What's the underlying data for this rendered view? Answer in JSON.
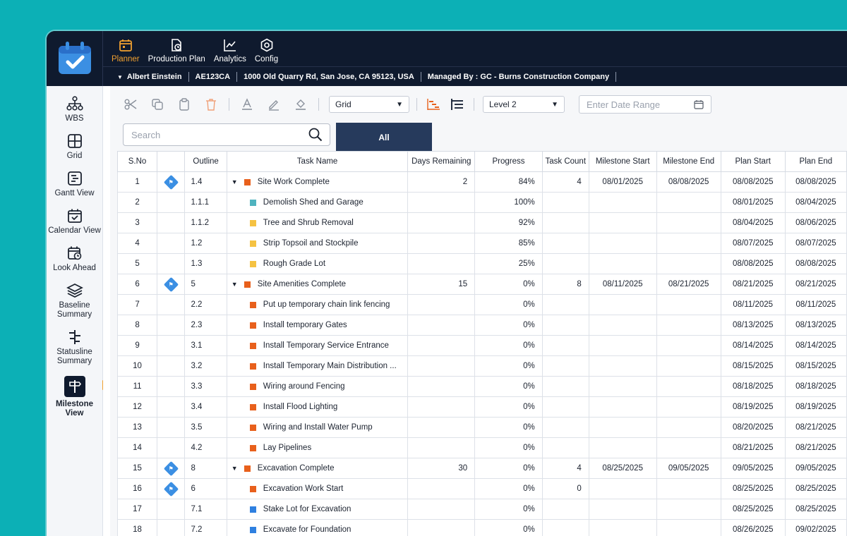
{
  "nav": [
    {
      "label": "Planner",
      "icon": "planner-icon",
      "active": true
    },
    {
      "label": "Production Plan",
      "icon": "production-plan-icon",
      "active": false
    },
    {
      "label": "Analytics",
      "icon": "analytics-icon",
      "active": false
    },
    {
      "label": "Config",
      "icon": "config-icon",
      "active": false
    }
  ],
  "info": {
    "user": "Albert Einstein",
    "project_code": "AE123CA",
    "address": "1000 Old Quarry Rd, San Jose, CA 95123, USA",
    "managed_by": "Managed By : GC - Burns Construction Company"
  },
  "sidebar": [
    {
      "label": "WBS",
      "icon": "wbs-icon"
    },
    {
      "label": "Grid",
      "icon": "grid-icon"
    },
    {
      "label": "Gantt View",
      "icon": "gantt-icon"
    },
    {
      "label": "Calendar View",
      "icon": "calendar-icon"
    },
    {
      "label": "Look Ahead",
      "icon": "look-ahead-icon"
    },
    {
      "label": "Baseline Summary",
      "icon": "baseline-icon"
    },
    {
      "label": "Statusline Summary",
      "icon": "statusline-icon"
    },
    {
      "label": "Milestone View",
      "icon": "milestone-icon",
      "active": true
    }
  ],
  "toolbar": {
    "view_select": "Grid",
    "level_select": "Level 2",
    "date_range_placeholder": "Enter Date Range"
  },
  "search": {
    "placeholder": "Search"
  },
  "tabs": {
    "all_label": "All"
  },
  "colors": {
    "accent": "#f0a030",
    "navy": "#0f1a2e",
    "tab": "#263a5c",
    "orange": "#e8601c",
    "yellow": "#f5c242",
    "teal": "#4fb3bf",
    "blue": "#2f80e0"
  },
  "table": {
    "columns": [
      "S.No",
      "",
      "Outline",
      "Task Name",
      "Days Remaining",
      "Progress",
      "Task Count",
      "Milestone Start",
      "Milestone End",
      "Plan Start",
      "Plan End"
    ],
    "rows": [
      {
        "sno": "1",
        "milestone": true,
        "outline": "1.4",
        "name": "Site Work Complete",
        "parent": true,
        "color": "#e8601c",
        "days": "2",
        "progress": "84%",
        "count": "4",
        "ms_start": "08/01/2025",
        "ms_end": "08/08/2025",
        "plan_start": "08/08/2025",
        "plan_end": "08/08/2025"
      },
      {
        "sno": "2",
        "milestone": false,
        "outline": "1.1.1",
        "name": "Demolish Shed and Garage",
        "parent": false,
        "color": "#4fb3bf",
        "days": "",
        "progress": "100%",
        "count": "",
        "ms_start": "",
        "ms_end": "",
        "plan_start": "08/01/2025",
        "plan_end": "08/04/2025"
      },
      {
        "sno": "3",
        "milestone": false,
        "outline": "1.1.2",
        "name": "Tree and Shrub Removal",
        "parent": false,
        "color": "#f5c242",
        "days": "",
        "progress": "92%",
        "count": "",
        "ms_start": "",
        "ms_end": "",
        "plan_start": "08/04/2025",
        "plan_end": "08/06/2025"
      },
      {
        "sno": "4",
        "milestone": false,
        "outline": "1.2",
        "name": "Strip Topsoil and Stockpile",
        "parent": false,
        "color": "#f5c242",
        "days": "",
        "progress": "85%",
        "count": "",
        "ms_start": "",
        "ms_end": "",
        "plan_start": "08/07/2025",
        "plan_end": "08/07/2025"
      },
      {
        "sno": "5",
        "milestone": false,
        "outline": "1.3",
        "name": "Rough Grade Lot",
        "parent": false,
        "color": "#f5c242",
        "days": "",
        "progress": "25%",
        "count": "",
        "ms_start": "",
        "ms_end": "",
        "plan_start": "08/08/2025",
        "plan_end": "08/08/2025"
      },
      {
        "sno": "6",
        "milestone": true,
        "outline": "5",
        "name": "Site Amenities Complete",
        "parent": true,
        "color": "#e8601c",
        "days": "15",
        "progress": "0%",
        "count": "8",
        "ms_start": "08/11/2025",
        "ms_end": "08/21/2025",
        "plan_start": "08/21/2025",
        "plan_end": "08/21/2025"
      },
      {
        "sno": "7",
        "milestone": false,
        "outline": "2.2",
        "name": "Put up temporary chain link fencing",
        "parent": false,
        "color": "#e8601c",
        "days": "",
        "progress": "0%",
        "count": "",
        "ms_start": "",
        "ms_end": "",
        "plan_start": "08/11/2025",
        "plan_end": "08/11/2025"
      },
      {
        "sno": "8",
        "milestone": false,
        "outline": "2.3",
        "name": "Install temporary Gates",
        "parent": false,
        "color": "#e8601c",
        "days": "",
        "progress": "0%",
        "count": "",
        "ms_start": "",
        "ms_end": "",
        "plan_start": "08/13/2025",
        "plan_end": "08/13/2025"
      },
      {
        "sno": "9",
        "milestone": false,
        "outline": "3.1",
        "name": "Install Temporary Service Entrance",
        "parent": false,
        "color": "#e8601c",
        "days": "",
        "progress": "0%",
        "count": "",
        "ms_start": "",
        "ms_end": "",
        "plan_start": "08/14/2025",
        "plan_end": "08/14/2025"
      },
      {
        "sno": "10",
        "milestone": false,
        "outline": "3.2",
        "name": "Install Temporary Main Distribution ...",
        "parent": false,
        "color": "#e8601c",
        "days": "",
        "progress": "0%",
        "count": "",
        "ms_start": "",
        "ms_end": "",
        "plan_start": "08/15/2025",
        "plan_end": "08/15/2025"
      },
      {
        "sno": "11",
        "milestone": false,
        "outline": "3.3",
        "name": "Wiring around Fencing",
        "parent": false,
        "color": "#e8601c",
        "days": "",
        "progress": "0%",
        "count": "",
        "ms_start": "",
        "ms_end": "",
        "plan_start": "08/18/2025",
        "plan_end": "08/18/2025"
      },
      {
        "sno": "12",
        "milestone": false,
        "outline": "3.4",
        "name": "Install Flood Lighting",
        "parent": false,
        "color": "#e8601c",
        "days": "",
        "progress": "0%",
        "count": "",
        "ms_start": "",
        "ms_end": "",
        "plan_start": "08/19/2025",
        "plan_end": "08/19/2025"
      },
      {
        "sno": "13",
        "milestone": false,
        "outline": "3.5",
        "name": "Wiring and Install Water Pump",
        "parent": false,
        "color": "#e8601c",
        "days": "",
        "progress": "0%",
        "count": "",
        "ms_start": "",
        "ms_end": "",
        "plan_start": "08/20/2025",
        "plan_end": "08/21/2025"
      },
      {
        "sno": "14",
        "milestone": false,
        "outline": "4.2",
        "name": "Lay Pipelines",
        "parent": false,
        "color": "#e8601c",
        "days": "",
        "progress": "0%",
        "count": "",
        "ms_start": "",
        "ms_end": "",
        "plan_start": "08/21/2025",
        "plan_end": "08/21/2025"
      },
      {
        "sno": "15",
        "milestone": true,
        "outline": "8",
        "name": "Excavation Complete",
        "parent": true,
        "color": "#e8601c",
        "days": "30",
        "progress": "0%",
        "count": "4",
        "ms_start": "08/25/2025",
        "ms_end": "09/05/2025",
        "plan_start": "09/05/2025",
        "plan_end": "09/05/2025"
      },
      {
        "sno": "16",
        "milestone": true,
        "outline": "6",
        "name": "Excavation Work Start",
        "parent": false,
        "color": "#e8601c",
        "days": "",
        "progress": "0%",
        "count": "0",
        "ms_start": "",
        "ms_end": "",
        "plan_start": "08/25/2025",
        "plan_end": "08/25/2025"
      },
      {
        "sno": "17",
        "milestone": false,
        "outline": "7.1",
        "name": "Stake Lot for Excavation",
        "parent": false,
        "color": "#2f80e0",
        "days": "",
        "progress": "0%",
        "count": "",
        "ms_start": "",
        "ms_end": "",
        "plan_start": "08/25/2025",
        "plan_end": "08/25/2025"
      },
      {
        "sno": "18",
        "milestone": false,
        "outline": "7.2",
        "name": "Excavate for Foundation",
        "parent": false,
        "color": "#2f80e0",
        "days": "",
        "progress": "0%",
        "count": "",
        "ms_start": "",
        "ms_end": "",
        "plan_start": "08/26/2025",
        "plan_end": "09/02/2025"
      }
    ]
  }
}
